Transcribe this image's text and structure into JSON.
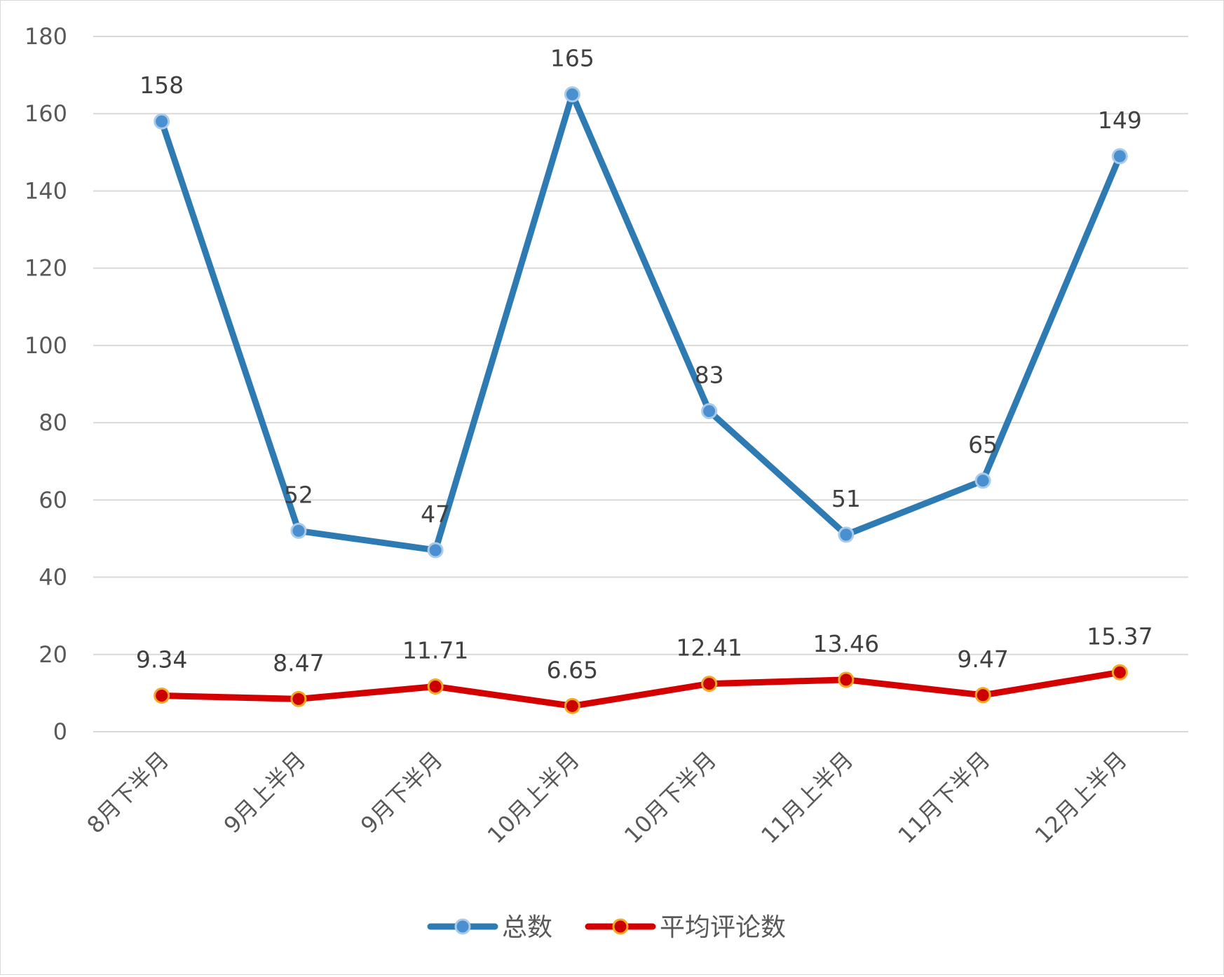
{
  "chart_data": {
    "type": "line",
    "categories": [
      "8月下半月",
      "9月上半月",
      "9月下半月",
      "10月上半月",
      "10月下半月",
      "11月上半月",
      "11月下半月",
      "12月上半月"
    ],
    "series": [
      {
        "name": "总数",
        "values": [
          158,
          52,
          47,
          165,
          83,
          51,
          65,
          149
        ],
        "labels": [
          "158",
          "52",
          "47",
          "165",
          "83",
          "51",
          "65",
          "149"
        ],
        "color": "#2e7bb4",
        "marker_color": "#4a90d0"
      },
      {
        "name": "平均评论数",
        "values": [
          9.34,
          8.47,
          11.71,
          6.65,
          12.41,
          13.46,
          9.47,
          15.37
        ],
        "labels": [
          "9.34",
          "8.47",
          "11.71",
          "6.65",
          "12.41",
          "13.46",
          "9.47",
          "15.37"
        ],
        "color": "#d40000",
        "marker_color": "#cc0000",
        "marker_edge": "#f5a623"
      }
    ],
    "title": "",
    "xlabel": "",
    "ylabel": "",
    "ylim": [
      0,
      180
    ],
    "yticks": [
      "0",
      "20",
      "40",
      "60",
      "80",
      "100",
      "120",
      "140",
      "160",
      "180"
    ],
    "grid": true,
    "legend_position": "bottom"
  }
}
